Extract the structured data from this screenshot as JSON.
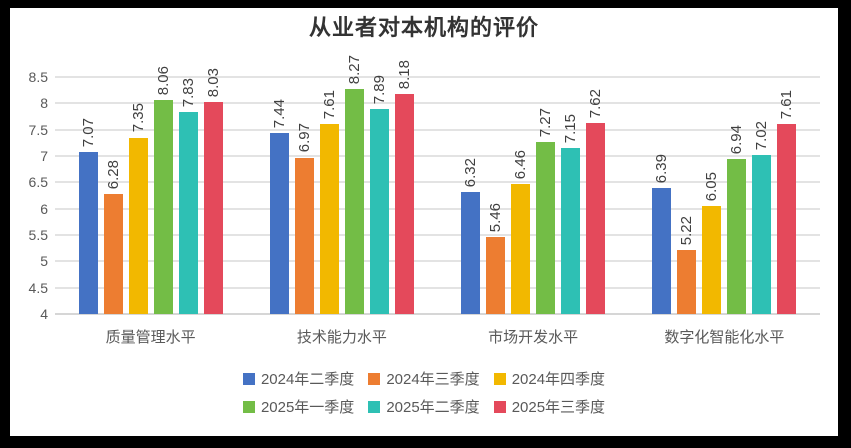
{
  "chart_data": {
    "type": "bar",
    "title": "从业者对本机构的评价",
    "categories": [
      "质量管理水平",
      "技术能力水平",
      "市场开发水平",
      "数字化智能化水平"
    ],
    "series": [
      {
        "name": "2024年二季度",
        "color": "#4472C4",
        "values": [
          7.07,
          7.44,
          6.32,
          6.39
        ]
      },
      {
        "name": "2024年三季度",
        "color": "#ED7D31",
        "values": [
          6.28,
          6.97,
          5.46,
          5.22
        ]
      },
      {
        "name": "2024年四季度",
        "color": "#F2B800",
        "values": [
          7.35,
          7.61,
          6.46,
          6.05
        ]
      },
      {
        "name": "2025年一季度",
        "color": "#73BD46",
        "values": [
          8.06,
          8.27,
          7.27,
          6.94
        ]
      },
      {
        "name": "2025年二季度",
        "color": "#2EC0B4",
        "values": [
          7.83,
          7.89,
          7.15,
          7.02
        ]
      },
      {
        "name": "2025年三季度",
        "color": "#E4495B",
        "values": [
          8.03,
          8.18,
          7.62,
          7.61
        ]
      }
    ],
    "y_axis": {
      "min": 4,
      "max": 8.5,
      "step": 0.5,
      "tick_labels": [
        "4",
        "4.5",
        "5",
        "5.5",
        "6",
        "6.5",
        "7",
        "7.5",
        "8",
        "8.5"
      ]
    },
    "grid": true,
    "data_labels": true,
    "legend_position": "bottom",
    "legend_rows": [
      [
        0,
        1,
        2
      ],
      [
        3,
        4,
        5
      ]
    ]
  }
}
